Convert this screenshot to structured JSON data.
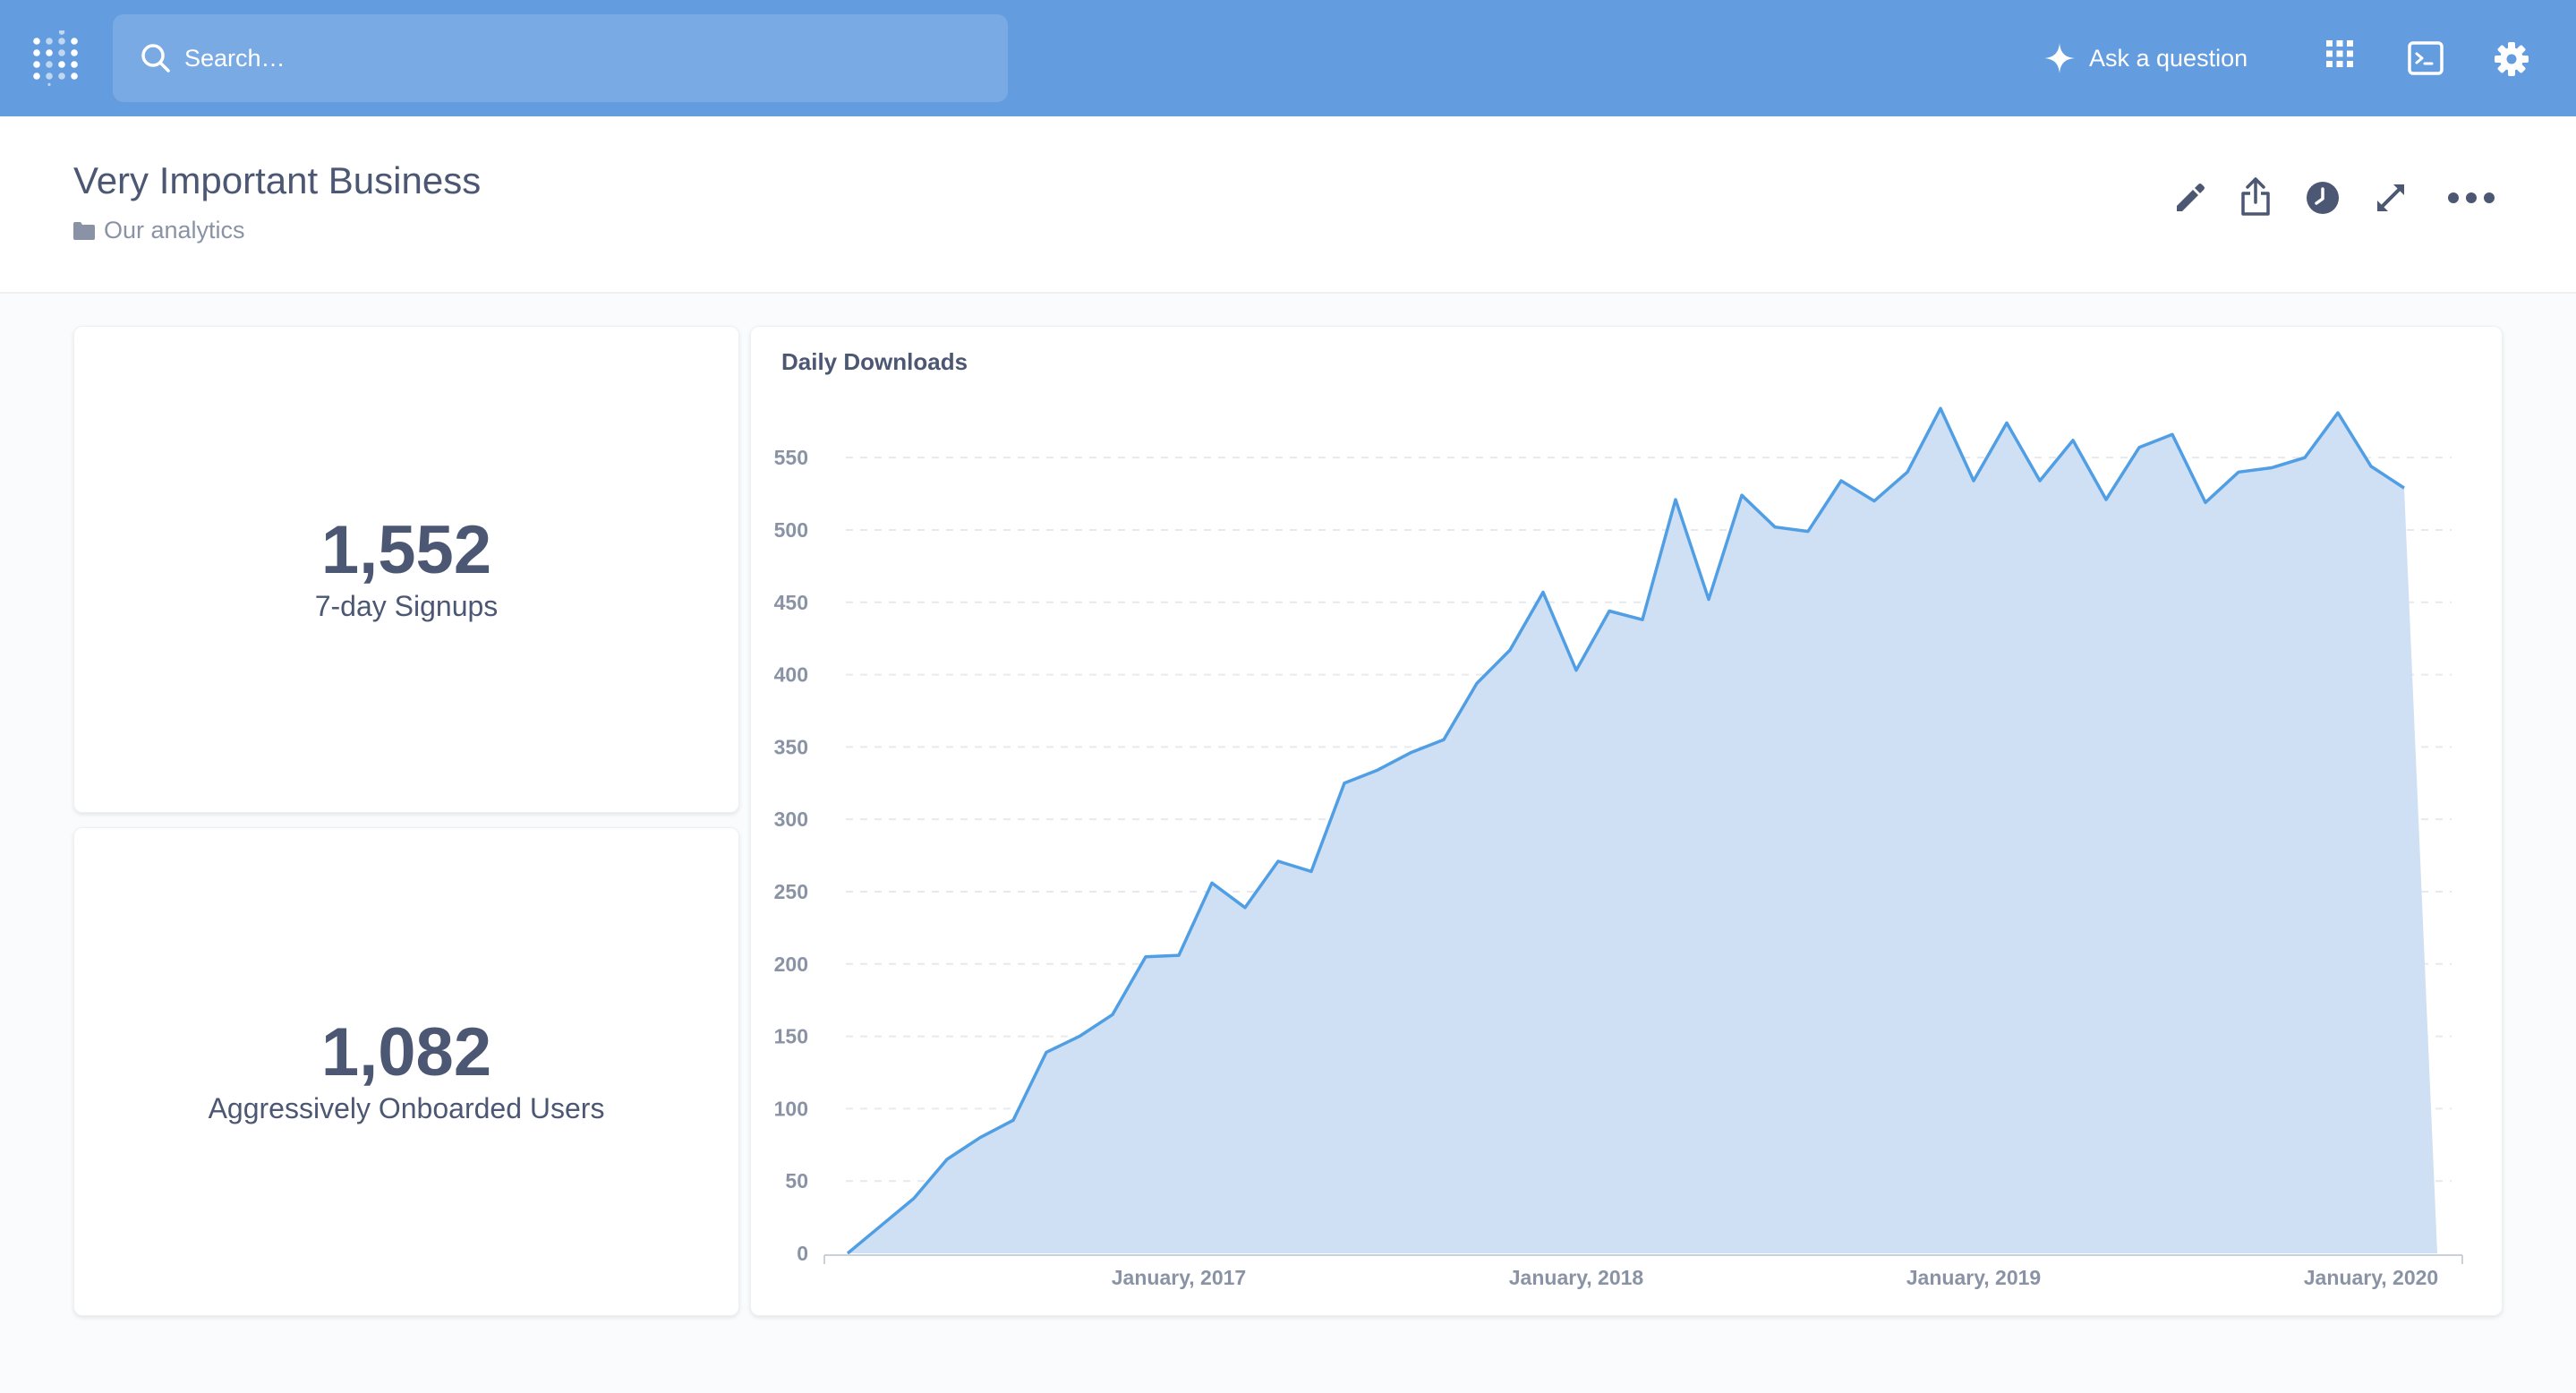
{
  "navbar": {
    "search_placeholder": "Search…",
    "ask_label": "Ask a question",
    "icons": [
      "metabase-logo-icon",
      "search-icon",
      "sparkle-icon",
      "grid-icon",
      "terminal-icon",
      "gear-icon"
    ]
  },
  "dashboard": {
    "title": "Very Important Business",
    "collection": "Our analytics",
    "header_icons": [
      "pencil-icon",
      "share-icon",
      "clock-icon",
      "expand-icon",
      "ellipsis-icon"
    ]
  },
  "cards": [
    {
      "value": "1,552",
      "label": "7-day Signups"
    },
    {
      "value": "1,082",
      "label": "Aggressively Onboarded Users"
    }
  ],
  "colors": {
    "navbar": "#639cdf",
    "series": "#509ee3",
    "text": "#4c5773"
  },
  "chart_data": {
    "type": "area",
    "title": "Daily Downloads",
    "xlabel": "",
    "ylabel": "",
    "ylim": [
      0,
      560
    ],
    "y_ticks": [
      "0",
      "50",
      "100",
      "150",
      "200",
      "250",
      "300",
      "350",
      "400",
      "450",
      "500",
      "550"
    ],
    "x_ticks": [
      {
        "label": "January, 2017",
        "date": "2017-01"
      },
      {
        "label": "January, 2018",
        "date": "2018-01"
      },
      {
        "label": "January, 2019",
        "date": "2019-01"
      },
      {
        "label": "January, 2020",
        "date": "2020-01"
      }
    ],
    "grid": true,
    "legend": "none",
    "series": [
      {
        "x": [
          "2016-03",
          "2016-04",
          "2016-05",
          "2016-06",
          "2016-07",
          "2016-08",
          "2016-09",
          "2016-10",
          "2016-11",
          "2016-12",
          "2017-01",
          "2017-02",
          "2017-03",
          "2017-04",
          "2017-05",
          "2017-06",
          "2017-07",
          "2017-08",
          "2017-09",
          "2017-10",
          "2017-11",
          "2017-12",
          "2018-01",
          "2018-02",
          "2018-03",
          "2018-04",
          "2018-05",
          "2018-06",
          "2018-07",
          "2018-08",
          "2018-09",
          "2018-10",
          "2018-11",
          "2018-12",
          "2019-01",
          "2019-02",
          "2019-03",
          "2019-04",
          "2019-05",
          "2019-06",
          "2019-07",
          "2019-08",
          "2019-09",
          "2019-10",
          "2019-11",
          "2019-12",
          "2020-01",
          "2020-02",
          "2020-03"
        ],
        "values": [
          0,
          19,
          38,
          65,
          80,
          92,
          139,
          150,
          165,
          205,
          206,
          256,
          239,
          271,
          264,
          325,
          334,
          346,
          355,
          394,
          417,
          457,
          403,
          444,
          438,
          521,
          452,
          524,
          502,
          499,
          534,
          520,
          540,
          584,
          534,
          574,
          534,
          562,
          521,
          557,
          566,
          519,
          540,
          543,
          550,
          581,
          544,
          529,
          0
        ]
      }
    ]
  }
}
